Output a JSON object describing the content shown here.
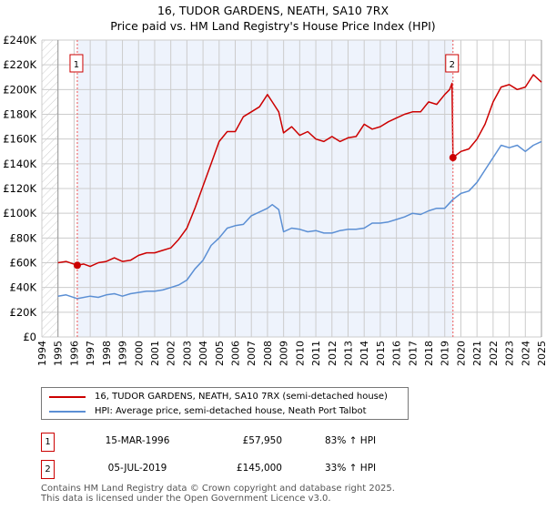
{
  "title_line1": "16, TUDOR GARDENS, NEATH, SA10 7RX",
  "title_line2": "Price paid vs. HM Land Registry's House Price Index (HPI)",
  "chart_data": {
    "type": "line",
    "xlim": [
      1994,
      2025
    ],
    "ylim": [
      0,
      240000
    ],
    "y_ticks": [
      0,
      20000,
      40000,
      60000,
      80000,
      100000,
      120000,
      140000,
      160000,
      180000,
      200000,
      220000,
      240000
    ],
    "y_tick_labels": [
      "£0",
      "£20K",
      "£40K",
      "£60K",
      "£80K",
      "£100K",
      "£120K",
      "£140K",
      "£160K",
      "£180K",
      "£200K",
      "£220K",
      "£240K"
    ],
    "x_ticks": [
      1994,
      1995,
      1996,
      1997,
      1998,
      1999,
      2000,
      2001,
      2002,
      2003,
      2004,
      2005,
      2006,
      2007,
      2008,
      2009,
      2010,
      2011,
      2012,
      2013,
      2014,
      2015,
      2016,
      2017,
      2018,
      2019,
      2020,
      2021,
      2022,
      2023,
      2024,
      2025
    ],
    "grid": true,
    "colors": {
      "property": "#cc0000",
      "hpi": "#5b8fd4",
      "shade": "#eef3fc"
    },
    "series": [
      {
        "name": "16, TUDOR GARDENS, NEATH, SA10 7RX (semi-detached house)",
        "x": [
          1995,
          1995.5,
          1996.2,
          1996.6,
          1997,
          1997.5,
          1998,
          1998.5,
          1999,
          1999.5,
          2000,
          2000.5,
          2001,
          2001.5,
          2002,
          2002.5,
          2003,
          2003.5,
          2004,
          2004.5,
          2005,
          2005.5,
          2006,
          2006.5,
          2007,
          2007.5,
          2008,
          2008.3,
          2008.7,
          2009,
          2009.5,
          2010,
          2010.5,
          2011,
          2011.5,
          2012,
          2012.5,
          2013,
          2013.5,
          2014,
          2014.5,
          2015,
          2015.5,
          2016,
          2016.5,
          2017,
          2017.5,
          2018,
          2018.5,
          2019,
          2019.3,
          2019.45,
          2019.51,
          2020,
          2020.5,
          2021,
          2021.5,
          2022,
          2022.5,
          2023,
          2023.5,
          2024,
          2024.5,
          2025
        ],
        "values": [
          60000,
          61000,
          57950,
          59000,
          57000,
          60000,
          61000,
          64000,
          61000,
          62000,
          66000,
          68000,
          68000,
          70000,
          72000,
          79000,
          88000,
          104000,
          122000,
          140000,
          158000,
          166000,
          166000,
          178000,
          182000,
          186000,
          196000,
          190000,
          182000,
          165000,
          170000,
          163000,
          166000,
          160000,
          158000,
          162000,
          158000,
          161000,
          162000,
          172000,
          168000,
          170000,
          174000,
          177000,
          180000,
          182000,
          182000,
          190000,
          188000,
          196000,
          200000,
          205000,
          145000,
          150000,
          152000,
          160000,
          172000,
          190000,
          202000,
          204000,
          200000,
          202000,
          212000,
          206000
        ]
      },
      {
        "name": "HPI: Average price, semi-detached house, Neath Port Talbot",
        "x": [
          1995,
          1995.5,
          1996.2,
          1997,
          1997.5,
          1998,
          1998.5,
          1999,
          1999.5,
          2000,
          2000.5,
          2001,
          2001.5,
          2002,
          2002.5,
          2003,
          2003.5,
          2004,
          2004.5,
          2005,
          2005.5,
          2006,
          2006.5,
          2007,
          2007.5,
          2008,
          2008.3,
          2008.7,
          2009,
          2009.5,
          2010,
          2010.5,
          2011,
          2011.5,
          2012,
          2012.5,
          2013,
          2013.5,
          2014,
          2014.5,
          2015,
          2015.5,
          2016,
          2016.5,
          2017,
          2017.5,
          2018,
          2018.5,
          2019,
          2019.5,
          2020,
          2020.5,
          2021,
          2021.5,
          2022,
          2022.5,
          2023,
          2023.5,
          2024,
          2024.5,
          2025
        ],
        "values": [
          33000,
          34000,
          31000,
          33000,
          32000,
          34000,
          35000,
          33000,
          35000,
          36000,
          37000,
          37000,
          38000,
          40000,
          42000,
          46000,
          55000,
          62000,
          74000,
          80000,
          88000,
          90000,
          91000,
          98000,
          101000,
          104000,
          107000,
          103000,
          85000,
          88000,
          87000,
          85000,
          86000,
          84000,
          84000,
          86000,
          87000,
          87000,
          88000,
          92000,
          92000,
          93000,
          95000,
          97000,
          100000,
          99000,
          102000,
          104000,
          104000,
          111000,
          116000,
          118000,
          125000,
          135000,
          145000,
          155000,
          153000,
          155000,
          150000,
          155000,
          158000
        ]
      }
    ],
    "annotations": [
      {
        "label": "1",
        "x": 1996.2,
        "value": 57950
      },
      {
        "label": "2",
        "x": 2019.51,
        "value": 145000
      }
    ]
  },
  "legend": {
    "property": "16, TUDOR GARDENS, NEATH, SA10 7RX (semi-detached house)",
    "hpi": "HPI: Average price, semi-detached house, Neath Port Talbot"
  },
  "transactions": [
    {
      "num": "1",
      "date": "15-MAR-1996",
      "price": "£57,950",
      "hpi": "83% ↑ HPI"
    },
    {
      "num": "2",
      "date": "05-JUL-2019",
      "price": "£145,000",
      "hpi": "33% ↑ HPI"
    }
  ],
  "footer_line1": "Contains HM Land Registry data © Crown copyright and database right 2025.",
  "footer_line2": "This data is licensed under the Open Government Licence v3.0."
}
